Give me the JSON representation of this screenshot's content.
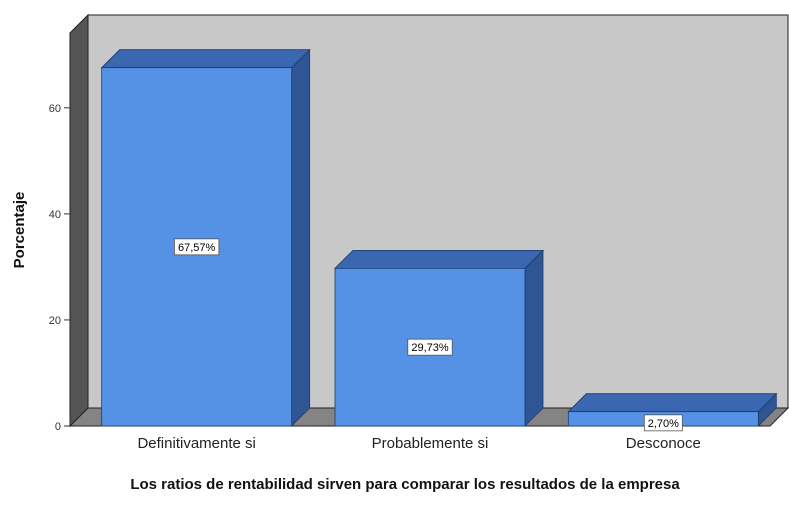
{
  "chart_data": {
    "type": "bar",
    "categories": [
      "Definitivamente si",
      "Probablemente si",
      "Desconoce"
    ],
    "values": [
      67.57,
      29.73,
      2.7
    ],
    "data_labels": [
      "67,57%",
      "29,73%",
      "2,70%"
    ],
    "title": "",
    "xlabel": "Los ratios de rentabilidad sirven para comparar los resultados de la empresa",
    "ylabel": "Porcentaje",
    "ylim": [
      0,
      75
    ],
    "yticks": [
      "0",
      "20",
      "40",
      "60"
    ],
    "ytick_values": [
      0,
      20,
      40,
      60
    ],
    "grid": false,
    "three_d": true,
    "colors": {
      "bar_front": "#5592e6",
      "bar_side": "#2f5594",
      "bar_top": "#3a67b0",
      "plot_back": "#c8c8c8",
      "floor": "#848484",
      "wall_left": "#555555",
      "label_box": "#ffffff"
    }
  }
}
